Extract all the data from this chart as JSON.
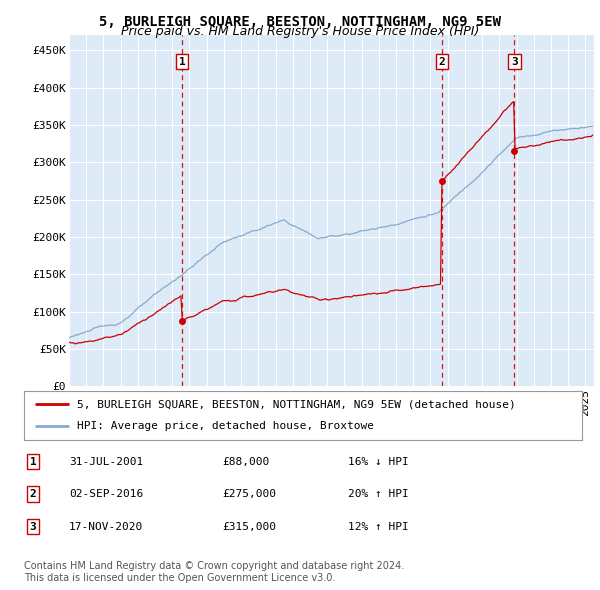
{
  "title": "5, BURLEIGH SQUARE, BEESTON, NOTTINGHAM, NG9 5EW",
  "subtitle": "Price paid vs. HM Land Registry's House Price Index (HPI)",
  "ylabel_ticks": [
    "£0",
    "£50K",
    "£100K",
    "£150K",
    "£200K",
    "£250K",
    "£300K",
    "£350K",
    "£400K",
    "£450K"
  ],
  "ytick_values": [
    0,
    50000,
    100000,
    150000,
    200000,
    250000,
    300000,
    350000,
    400000,
    450000
  ],
  "ylim": [
    0,
    470000
  ],
  "xlim_start": 1995.0,
  "xlim_end": 2025.5,
  "background_color": "#ddeaf7",
  "grid_color": "#ffffff",
  "sale_dates": [
    2001.583,
    2016.667,
    2020.875
  ],
  "sale_prices": [
    88000,
    275000,
    315000
  ],
  "sale_labels": [
    "1",
    "2",
    "3"
  ],
  "vline_color": "#cc0000",
  "sale_marker_color": "#cc0000",
  "red_line_color": "#cc0000",
  "blue_line_color": "#88aacc",
  "legend_red_label": "5, BURLEIGH SQUARE, BEESTON, NOTTINGHAM, NG9 5EW (detached house)",
  "legend_blue_label": "HPI: Average price, detached house, Broxtowe",
  "table_rows": [
    [
      "1",
      "31-JUL-2001",
      "£88,000",
      "16% ↓ HPI"
    ],
    [
      "2",
      "02-SEP-2016",
      "£275,000",
      "20% ↑ HPI"
    ],
    [
      "3",
      "17-NOV-2020",
      "£315,000",
      "12% ↑ HPI"
    ]
  ],
  "footer": "Contains HM Land Registry data © Crown copyright and database right 2024.\nThis data is licensed under the Open Government Licence v3.0.",
  "title_fontsize": 10,
  "subtitle_fontsize": 9,
  "tick_fontsize": 8,
  "legend_fontsize": 8,
  "table_fontsize": 8,
  "footer_fontsize": 7
}
